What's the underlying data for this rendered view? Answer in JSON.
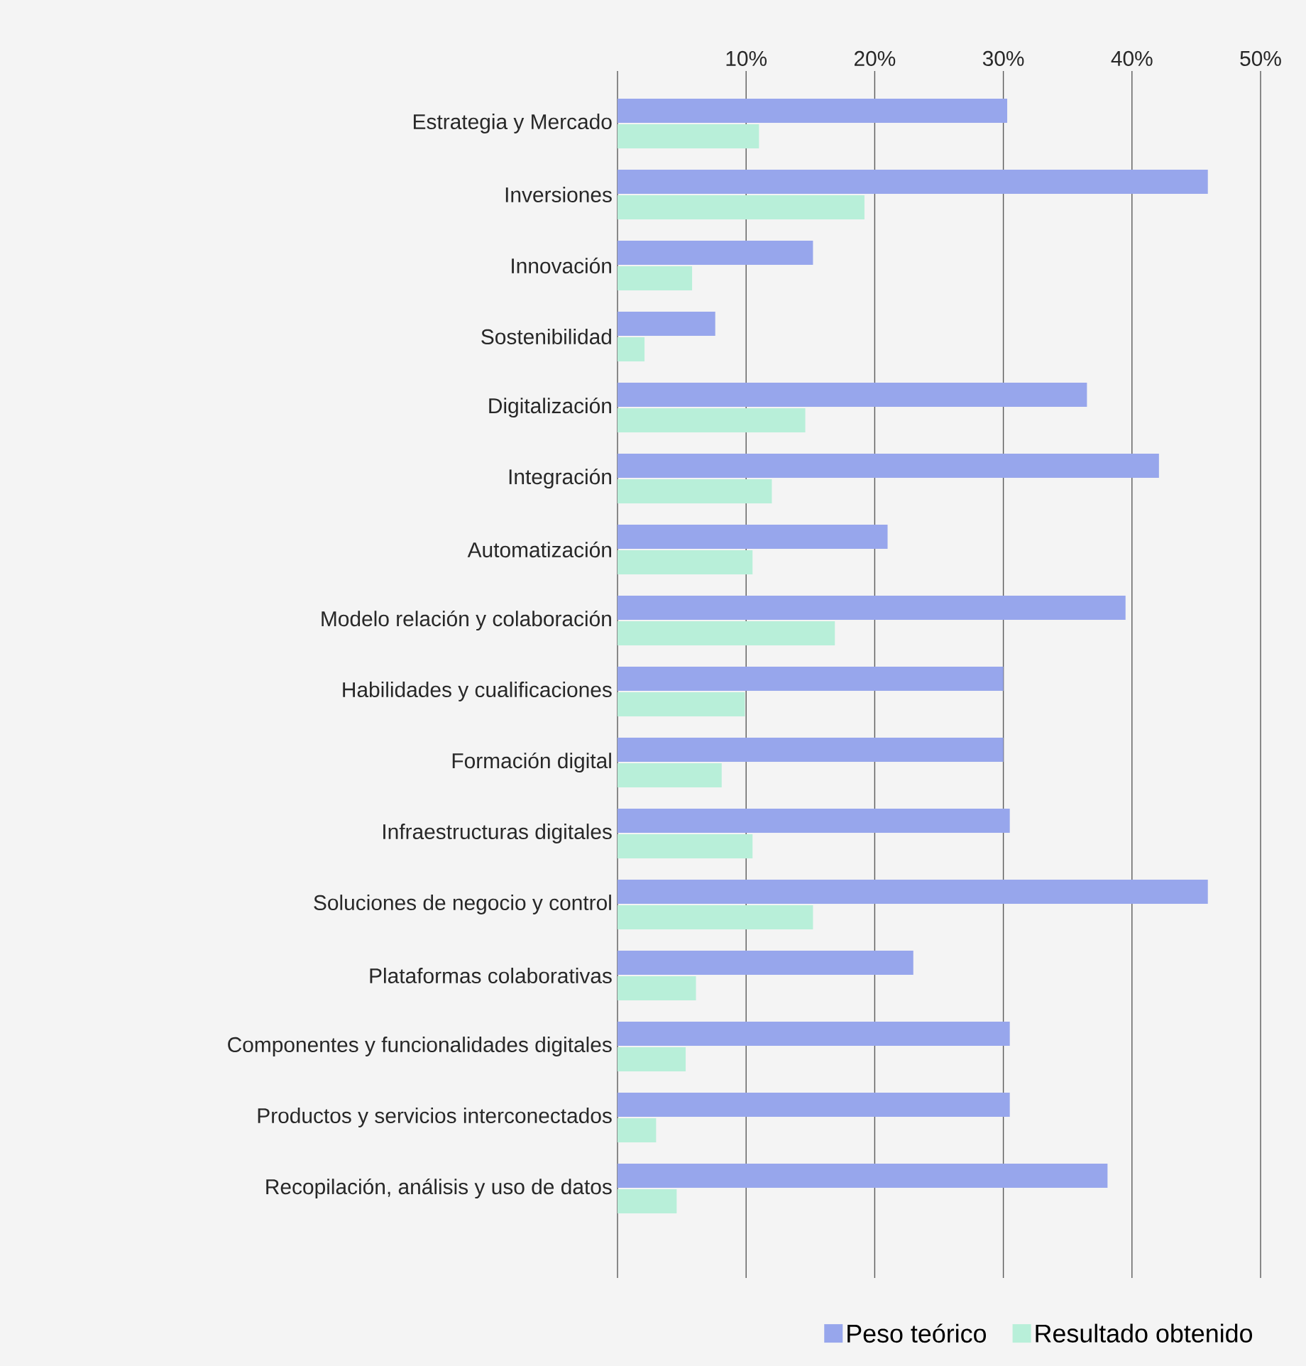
{
  "chart_data": {
    "type": "bar",
    "orientation": "horizontal",
    "categories": [
      "Estrategia y Mercado",
      "Inversiones",
      "Innovación",
      "Sostenibilidad",
      "Digitalización",
      "Integración",
      "Automatización",
      "Modelo relación y colaboración",
      "Habilidades y cualificaciones",
      "Formación digital",
      "Infraestructuras digitales",
      "Soluciones de negocio y control",
      "Plataformas colaborativas",
      "Componentes y funcionalidades digitales",
      "Productos y servicios interconectados",
      "Recopilación, análisis y uso de datos"
    ],
    "series": [
      {
        "name": "Peso teórico",
        "color": "#97a6ec",
        "values": [
          30.3,
          45.9,
          15.2,
          7.6,
          36.5,
          42.1,
          21.0,
          39.5,
          30.0,
          30.0,
          30.5,
          45.9,
          23.0,
          30.5,
          30.5,
          38.1
        ]
      },
      {
        "name": "Resultado obtenido",
        "color": "#b8efd9",
        "values": [
          11.0,
          19.2,
          5.8,
          2.1,
          14.6,
          12.0,
          10.5,
          16.9,
          9.9,
          8.1,
          10.5,
          15.2,
          6.1,
          5.3,
          3.0,
          4.6
        ]
      }
    ],
    "xlim": [
      0,
      50
    ],
    "xticks": [
      {
        "value": 0,
        "label": null
      },
      {
        "value": 10,
        "label": "10%"
      },
      {
        "value": 20,
        "label": "20%"
      },
      {
        "value": 30,
        "label": "30%"
      },
      {
        "value": 40,
        "label": "40%"
      },
      {
        "value": 50,
        "label": "50%"
      }
    ],
    "grid": "x",
    "legend": "bottom right"
  }
}
